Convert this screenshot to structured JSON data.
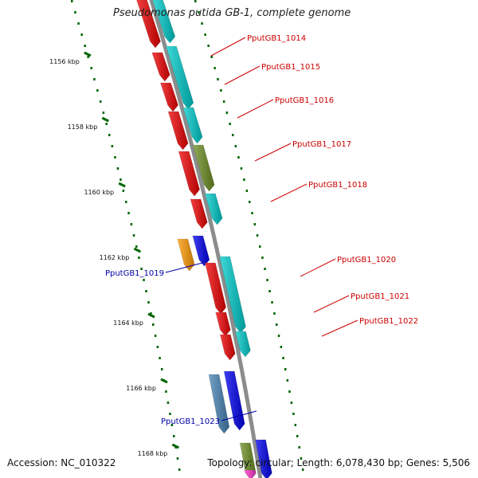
{
  "title": "Pseudomonas putida GB-1, complete genome",
  "footer": {
    "accession": "Accession: NC_010322",
    "summary": "Topology: circular; Length: 6,078,430 bp; Genes: 5,506"
  },
  "colors": {
    "forward_label": "#cc0000",
    "reverse_label": "#0000aa",
    "backbone": "#8c8c8c",
    "tick": "#006600"
  },
  "scale_labels": [
    "1156 kbp",
    "1158 kbp",
    "1160 kbp",
    "1162 kbp",
    "1164 kbp",
    "1166 kbp",
    "1168 kbp"
  ],
  "gene_labels": [
    {
      "name": "PputGB1_1014",
      "strand": "forward"
    },
    {
      "name": "PputGB1_1015",
      "strand": "forward"
    },
    {
      "name": "PputGB1_1016",
      "strand": "forward"
    },
    {
      "name": "PputGB1_1017",
      "strand": "forward"
    },
    {
      "name": "PputGB1_1018",
      "strand": "forward"
    },
    {
      "name": "PputGB1_1019",
      "strand": "reverse"
    },
    {
      "name": "PputGB1_1020",
      "strand": "forward"
    },
    {
      "name": "PputGB1_1021",
      "strand": "forward"
    },
    {
      "name": "PputGB1_1022",
      "strand": "forward"
    },
    {
      "name": "PputGB1_1023",
      "strand": "reverse"
    }
  ],
  "feature_colors": {
    "cds": "#ee0000",
    "cds_forward_class": "#00cccc",
    "cds_olive": "#6b8e23",
    "cds_orange": "#ff9900",
    "cds_blue": "#0000ee",
    "cds_steel": "#4682b4",
    "cds_pink": "#ff33cc"
  }
}
